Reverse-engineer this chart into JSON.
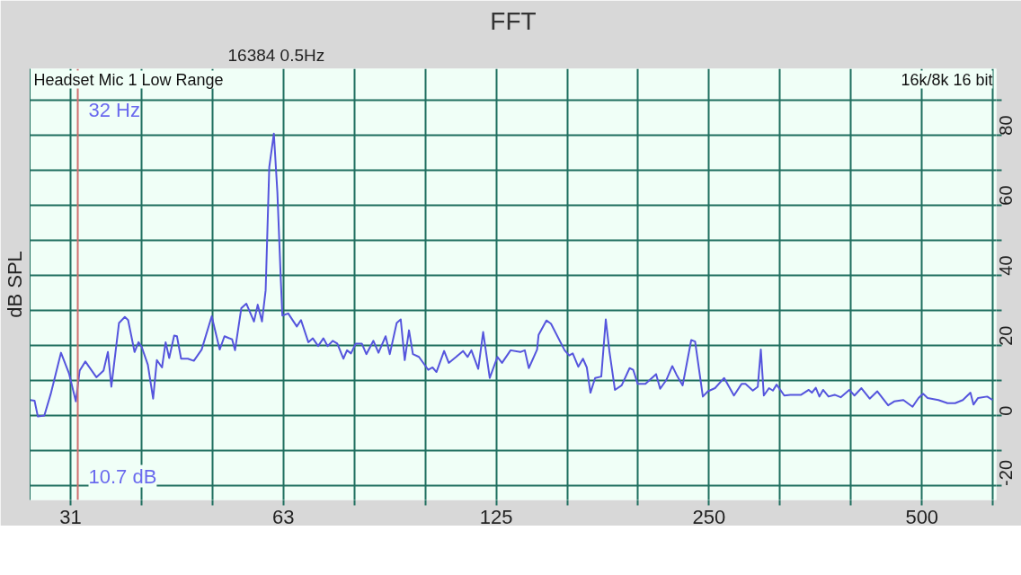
{
  "chart_data": {
    "type": "line",
    "title": "FFT",
    "ylabel": "dB SPL",
    "annotations": [
      "Headset Mic 1 Low Range",
      "16k/8k 16 bit",
      "16384  0.5Hz",
      "10.7 dB"
    ],
    "log": "x",
    "grid": true,
    "xlim": [
      27.4,
      637
    ],
    "ylim": [
      -24,
      99
    ],
    "xticks": [
      {
        "value": 31.25,
        "label": "31"
      },
      {
        "value": 39.37,
        "label": null
      },
      {
        "value": 49.61,
        "label": null
      },
      {
        "value": 62.5,
        "label": "63"
      },
      {
        "value": 78.75,
        "label": null
      },
      {
        "value": 99.21,
        "label": null
      },
      125,
      {
        "value": 157.5,
        "label": null
      },
      {
        "value": 198.4,
        "label": null
      },
      250,
      {
        "value": 315.0,
        "label": null
      },
      {
        "value": 396.9,
        "label": null
      },
      500,
      {
        "value": 630.0,
        "label": null
      }
    ],
    "yticks": [
      -20,
      {
        "value": -10,
        "label": null
      },
      0,
      {
        "value": 10,
        "label": null
      },
      20,
      {
        "value": 30,
        "label": null
      },
      40,
      {
        "value": 50,
        "label": null
      },
      60,
      {
        "value": 70,
        "label": null
      },
      80,
      {
        "value": 90,
        "label": null
      }
    ],
    "ref_lines": [
      {
        "axis": "x",
        "value": 32,
        "label": "32 Hz",
        "color": "#d07070"
      }
    ],
    "series": [
      {
        "color": "#5555dd",
        "x": [
          27.4,
          27.8,
          28.1,
          28.7,
          29.3,
          30.3,
          31.1,
          31.8,
          32.2,
          32.8,
          34.0,
          34.8,
          35.3,
          35.7,
          36.6,
          37.3,
          37.7,
          38.5,
          39.0,
          39.4,
          40.2,
          40.9,
          41.4,
          42.1,
          42.6,
          43.1,
          43.8,
          44.2,
          44.8,
          45.8,
          46.7,
          47.9,
          49.5,
          50.8,
          51.6,
          52.9,
          53.4,
          54.5,
          55.4,
          56.8,
          57.5,
          58.3,
          59.0,
          59.7,
          60.6,
          61.3,
          62.0,
          62.3,
          63.5,
          65.3,
          66.2,
          67.8,
          68.8,
          70.0,
          71.2,
          72.2,
          73.4,
          74.5,
          76.0,
          76.9,
          77.9,
          79.1,
          80.7,
          81.9,
          83.8,
          85.2,
          87.2,
          88.4,
          90.4,
          91.6,
          92.8,
          94.1,
          95.3,
          97.2,
          100.2,
          101.6,
          102.9,
          105.5,
          107.1,
          109.7,
          112.2,
          113.9,
          115.3,
          117.9,
          119.8,
          122.4,
          125.5,
          127.4,
          131.0,
          135.2,
          137.2,
          139.0,
          142.8,
          143.5,
          147.2,
          149.4,
          156.2,
          158.5,
          160.4,
          163.3,
          165.8,
          167.9,
          169.9,
          172.5,
          176.0,
          178.6,
          180.7,
          184.0,
          188.1,
          193.0,
          195.3,
          198.2,
          203.2,
          210.4,
          213.2,
          217.5,
          221.8,
          224.9,
          229.4,
          235.9,
          238.9,
          245.0,
          249.1,
          254.9,
          262.6,
          271.1,
          277.9,
          281.5,
          288.3,
          293.0,
          295.9,
          298.8,
          303.9,
          307.8,
          311.5,
          319.4,
          325.7,
          337.4,
          345.9,
          349.4,
          353.9,
          358.1,
          362.4,
          368.9,
          376.3,
          383.8,
          394.7,
          401.4,
          410.6,
          421.8,
          432.4,
          447.9,
          456.8,
          470.7,
          485.0,
          494.5,
          501.9,
          509.4,
          527.5,
          543.5,
          557.1,
          571.3,
          585.6,
          591.4,
          600.3,
          618.4,
          629.6
        ],
        "values": [
          4.5,
          4.3,
          -0.2,
          0.1,
          6.2,
          18.0,
          12.1,
          4.1,
          12.9,
          15.5,
          11.0,
          12.9,
          18.2,
          8.3,
          26.5,
          28.2,
          27.3,
          18.2,
          21.0,
          19.7,
          14.6,
          4.9,
          15.9,
          13.8,
          21.0,
          16.5,
          22.9,
          22.7,
          16.3,
          16.3,
          15.7,
          18.9,
          28.4,
          18.9,
          22.7,
          21.8,
          18.7,
          30.7,
          32.0,
          26.9,
          31.7,
          26.9,
          35.8,
          70.9,
          80.5,
          63.7,
          38.3,
          28.6,
          29.2,
          25.5,
          27.3,
          21.0,
          22.1,
          19.9,
          22.1,
          19.9,
          21.4,
          20.6,
          16.3,
          18.7,
          17.8,
          20.6,
          20.6,
          17.6,
          21.4,
          18.0,
          22.7,
          17.6,
          26.5,
          27.5,
          15.9,
          24.4,
          17.6,
          16.8,
          13.1,
          13.8,
          12.5,
          18.5,
          15.1,
          16.8,
          18.5,
          16.8,
          18.7,
          13.4,
          23.9,
          10.8,
          16.8,
          15.1,
          18.7,
          18.2,
          18.7,
          13.6,
          18.9,
          23.1,
          27.2,
          26.3,
          18.7,
          17.2,
          17.8,
          14.0,
          16.3,
          13.8,
          6.6,
          10.8,
          11.2,
          27.5,
          18.5,
          7.4,
          8.7,
          13.6,
          13.1,
          9.1,
          9.1,
          11.9,
          7.7,
          10.2,
          14.2,
          11.7,
          8.7,
          21.6,
          21.2,
          5.5,
          7.0,
          7.9,
          10.8,
          5.8,
          9.1,
          9.1,
          7.2,
          8.3,
          18.9,
          5.8,
          7.9,
          7.2,
          8.9,
          5.8,
          6.0,
          6.0,
          7.4,
          6.6,
          8.0,
          5.5,
          7.4,
          5.5,
          6.0,
          5.3,
          7.4,
          5.8,
          7.9,
          4.9,
          7.0,
          3.0,
          4.1,
          4.5,
          2.6,
          5.1,
          6.3,
          5.1,
          4.5,
          3.6,
          3.6,
          4.5,
          6.6,
          3.2,
          5.1,
          5.5,
          4.5
        ]
      }
    ]
  }
}
